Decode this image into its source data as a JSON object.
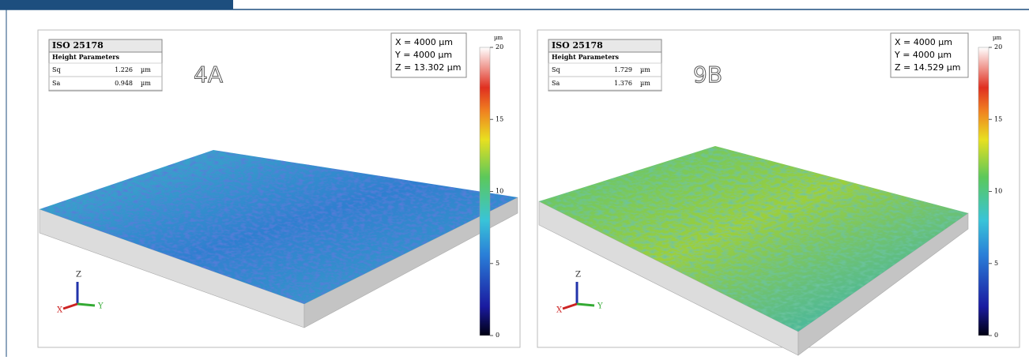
{
  "panels": [
    {
      "label": "4A",
      "iso": {
        "title": "ISO 25178",
        "subtitle": "Height Parameters",
        "rows": [
          [
            "Sq",
            "1.226",
            "µm"
          ],
          [
            "Sa",
            "0.948",
            "µm"
          ]
        ]
      },
      "coords": [
        "X = 4000 µm",
        "Y = 4000 µm",
        "Z = 13.302 µm"
      ],
      "colorbar": {
        "unit": "µm",
        "ticks": [
          0,
          5,
          10,
          15,
          20
        ]
      },
      "axes": [
        "Z",
        "X",
        "Y"
      ]
    },
    {
      "label": "9B",
      "iso": {
        "title": "ISO 25178",
        "subtitle": "Height Parameters",
        "rows": [
          [
            "Sq",
            "1.729",
            "µm"
          ],
          [
            "Sa",
            "1.376",
            "µm"
          ]
        ]
      },
      "coords": [
        "X = 4000 µm",
        "Y = 4000 µm",
        "Z = 14.529 µm"
      ],
      "colorbar": {
        "unit": "µm",
        "ticks": [
          0,
          5,
          10,
          15,
          20
        ]
      },
      "axes": [
        "Z",
        "X",
        "Y"
      ]
    }
  ]
}
